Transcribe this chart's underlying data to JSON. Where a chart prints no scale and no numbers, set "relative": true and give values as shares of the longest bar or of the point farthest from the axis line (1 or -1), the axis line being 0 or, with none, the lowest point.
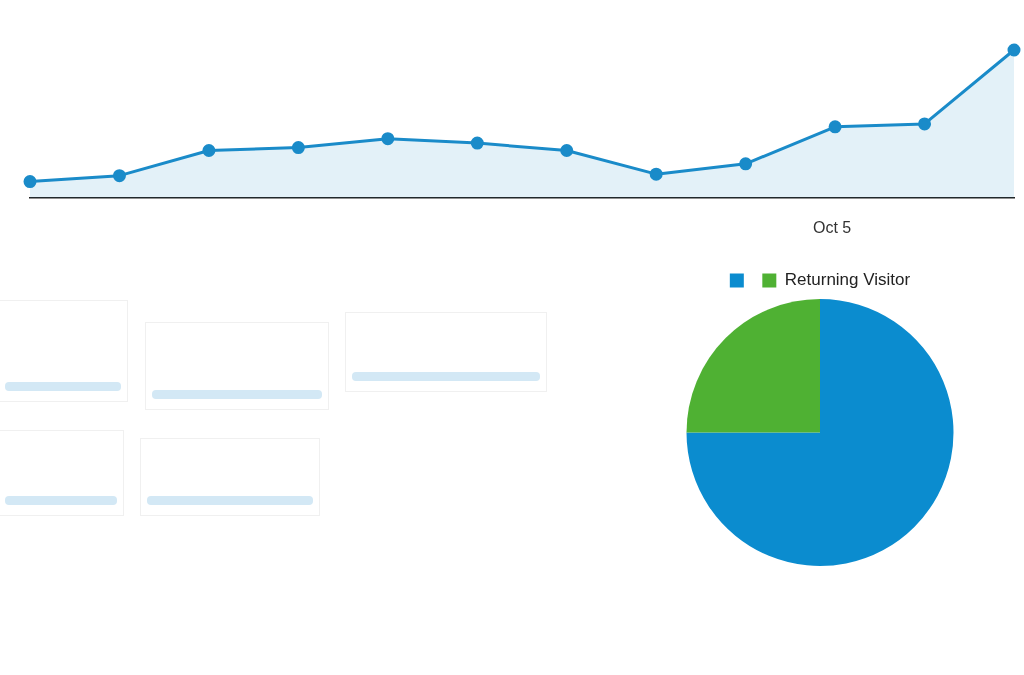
{
  "chart_data": [
    {
      "type": "area",
      "categories": [
        null,
        null,
        null,
        null,
        null,
        null,
        null,
        null,
        null,
        null,
        null,
        null
      ],
      "values": [
        0.11,
        0.15,
        0.32,
        0.34,
        0.4,
        0.37,
        0.32,
        0.16,
        0.23,
        0.48,
        0.5,
        1
      ],
      "relative": true,
      "color": "#1a8bc9",
      "marker": "circle",
      "annotations": [
        "Oct 5"
      ]
    },
    {
      "type": "pie",
      "categories": [
        null,
        "Returning Visitor"
      ],
      "values": [
        75,
        25
      ],
      "colors": [
        "#0b8ccf",
        "#4fb133"
      ],
      "legend": "top"
    }
  ]
}
